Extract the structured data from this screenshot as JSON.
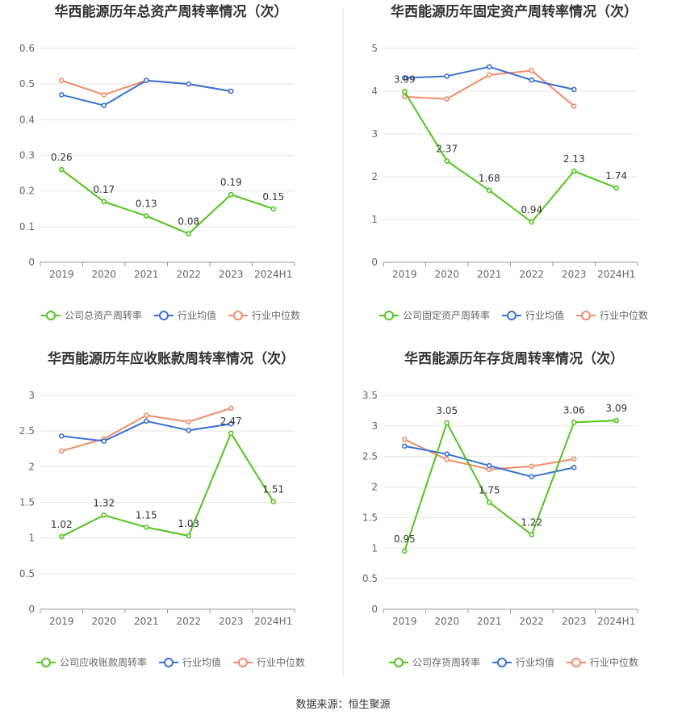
{
  "source": "数据来源：恒生聚源",
  "legend_labels": {
    "company_prefix": "公司",
    "avg": "行业均值",
    "median": "行业中位数"
  },
  "colors": {
    "company": "#52c41a",
    "avg": "#3a6fd8",
    "median": "#f28b68",
    "grid": "#e5e5e5",
    "axis": "#999999",
    "text": "#666666"
  },
  "chart_data": [
    {
      "type": "line",
      "title": "华西能源历年总资产周转率情况（次）",
      "categories": [
        "2019",
        "2020",
        "2021",
        "2022",
        "2023",
        "2024H1"
      ],
      "ylim": [
        0,
        0.6
      ],
      "yticks": [
        0,
        0.1,
        0.2,
        0.3,
        0.4,
        0.5,
        0.6
      ],
      "ytick_labels": [
        "0",
        "0.1",
        "0.2",
        "0.3",
        "0.4",
        "0.5",
        "0.6"
      ],
      "grid": true,
      "legend_position": "bottom",
      "series": [
        {
          "name": "公司总资产周转率",
          "role": "company",
          "values": [
            0.26,
            0.17,
            0.13,
            0.08,
            0.19,
            0.15
          ],
          "labels": [
            "0.26",
            "0.17",
            "0.13",
            "0.08",
            "0.19",
            "0.15"
          ]
        },
        {
          "name": "行业均值",
          "role": "avg",
          "values": [
            0.47,
            0.44,
            0.51,
            0.5,
            0.48,
            null
          ]
        },
        {
          "name": "行业中位数",
          "role": "median",
          "values": [
            0.51,
            0.47,
            0.51,
            0.5,
            0.48,
            null
          ]
        }
      ]
    },
    {
      "type": "line",
      "title": "华西能源历年固定资产周转率情况（次）",
      "categories": [
        "2019",
        "2020",
        "2021",
        "2022",
        "2023",
        "2024H1"
      ],
      "ylim": [
        0,
        5
      ],
      "yticks": [
        0,
        1,
        2,
        3,
        4,
        5
      ],
      "ytick_labels": [
        "0",
        "1",
        "2",
        "3",
        "4",
        "5"
      ],
      "grid": true,
      "legend_position": "bottom",
      "series": [
        {
          "name": "公司固定资产周转率",
          "role": "company",
          "values": [
            3.99,
            2.37,
            1.68,
            0.94,
            2.13,
            1.74
          ],
          "labels": [
            "3.99",
            "2.37",
            "1.68",
            "0.94",
            "2.13",
            "1.74"
          ]
        },
        {
          "name": "行业均值",
          "role": "avg",
          "values": [
            4.31,
            4.35,
            4.57,
            4.26,
            4.04,
            null
          ]
        },
        {
          "name": "行业中位数",
          "role": "median",
          "values": [
            3.87,
            3.82,
            4.38,
            4.48,
            3.65,
            null
          ]
        }
      ]
    },
    {
      "type": "line",
      "title": "华西能源历年应收账款周转率情况（次）",
      "categories": [
        "2019",
        "2020",
        "2021",
        "2022",
        "2023",
        "2024H1"
      ],
      "ylim": [
        0,
        3
      ],
      "yticks": [
        0,
        0.5,
        1,
        1.5,
        2,
        2.5,
        3
      ],
      "ytick_labels": [
        "0",
        "0.5",
        "1",
        "1.5",
        "2",
        "2.5",
        "3"
      ],
      "grid": true,
      "legend_position": "bottom",
      "series": [
        {
          "name": "公司应收账款周转率",
          "role": "company",
          "values": [
            1.02,
            1.32,
            1.15,
            1.03,
            2.47,
            1.51
          ],
          "labels": [
            "1.02",
            "1.32",
            "1.15",
            "1.03",
            "2.47",
            "1.51"
          ]
        },
        {
          "name": "行业均值",
          "role": "avg",
          "values": [
            2.43,
            2.36,
            2.64,
            2.51,
            2.6,
            null
          ]
        },
        {
          "name": "行业中位数",
          "role": "median",
          "values": [
            2.22,
            2.39,
            2.72,
            2.63,
            2.82,
            null
          ]
        }
      ]
    },
    {
      "type": "line",
      "title": "华西能源历年存货周转率情况（次）",
      "categories": [
        "2019",
        "2020",
        "2021",
        "2022",
        "2023",
        "2024H1"
      ],
      "ylim": [
        0,
        3.5
      ],
      "yticks": [
        0,
        0.5,
        1,
        1.5,
        2,
        2.5,
        3,
        3.5
      ],
      "ytick_labels": [
        "0",
        "0.5",
        "1",
        "1.5",
        "2",
        "2.5",
        "3",
        "3.5"
      ],
      "grid": true,
      "legend_position": "bottom",
      "series": [
        {
          "name": "公司存货周转率",
          "role": "company",
          "values": [
            0.95,
            3.05,
            1.75,
            1.22,
            3.06,
            3.09
          ],
          "labels": [
            "0.95",
            "3.05",
            "1.75",
            "1.22",
            "3.06",
            "3.09"
          ]
        },
        {
          "name": "行业均值",
          "role": "avg",
          "values": [
            2.67,
            2.54,
            2.35,
            2.17,
            2.32,
            null
          ]
        },
        {
          "name": "行业中位数",
          "role": "median",
          "values": [
            2.78,
            2.45,
            2.29,
            2.34,
            2.46,
            null
          ]
        }
      ]
    }
  ]
}
